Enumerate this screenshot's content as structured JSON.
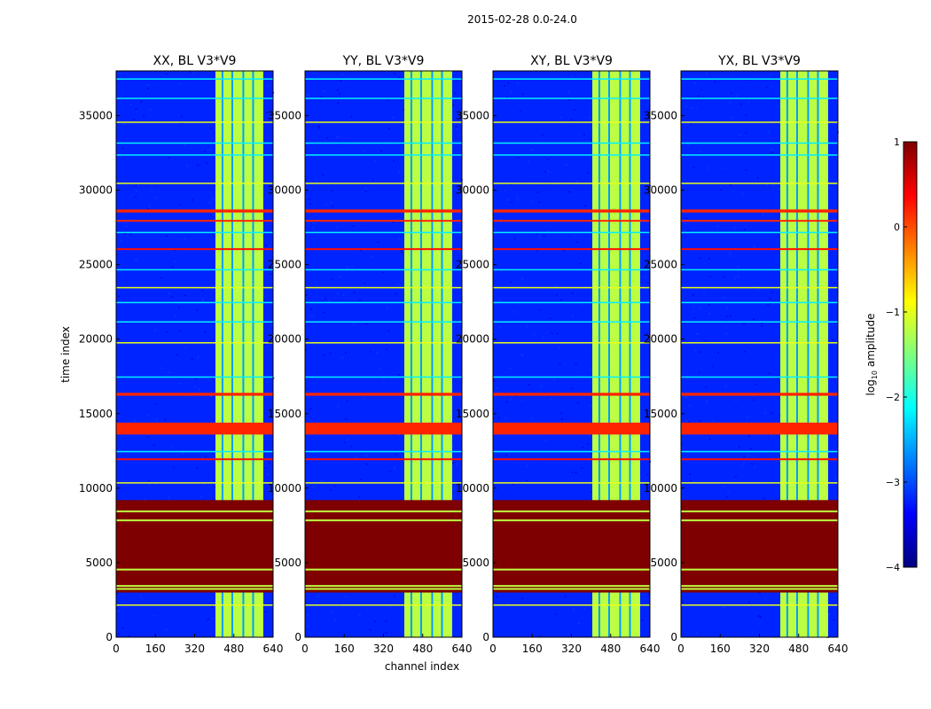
{
  "figure": {
    "suptitle": "2015-02-28 0.0-24.0"
  },
  "colorbar": {
    "label": "log₁₀ amplitude",
    "label_main": "amplitude",
    "label_log": "log",
    "label_sub": "10",
    "ticks": [
      "1",
      "0",
      "−1",
      "−2",
      "−3",
      "−4"
    ],
    "tick_values": [
      1,
      0,
      -1,
      -2,
      -3,
      -4
    ],
    "min": -4,
    "max": 1,
    "colors": [
      "#00007f",
      "#0000ff",
      "#007fff",
      "#00ffff",
      "#7fff7f",
      "#ffff00",
      "#ff7f00",
      "#ff0000",
      "#7f0000"
    ]
  },
  "chart_data": {
    "type": "heatmap",
    "xlabel": "channel index",
    "ylabel": "time index",
    "xlim": [
      0,
      640
    ],
    "ylim": [
      0,
      38000
    ],
    "xticks": [
      0,
      160,
      320,
      480,
      640
    ],
    "xtick_labels": [
      "0",
      "160",
      "320",
      "480",
      "640"
    ],
    "yticks": [
      0,
      5000,
      10000,
      15000,
      20000,
      25000,
      30000,
      35000
    ],
    "ytick_labels": [
      "0",
      "5000",
      "10000",
      "15000",
      "20000",
      "25000",
      "30000",
      "35000"
    ],
    "panels": [
      {
        "title": "XX, BL V3*V9"
      },
      {
        "title": "YY, BL V3*V9"
      },
      {
        "title": "XY, BL V3*V9"
      },
      {
        "title": "YX, BL V3*V9"
      }
    ],
    "bright_channel_range": [
      405,
      600
    ],
    "saturated_time_range": [
      3000,
      9200
    ],
    "saturated_value": 1,
    "background_value": -3.2,
    "band_value": -1.2,
    "flag_rows": [
      {
        "t_start": 13600,
        "t_end": 14400,
        "value": 0.2
      },
      {
        "t_start": 28500,
        "t_end": 28700,
        "value": 0.2
      },
      {
        "t_start": 27900,
        "t_end": 28000,
        "value": 0.2
      },
      {
        "t_start": 16200,
        "t_end": 16400,
        "value": 0.2
      },
      {
        "t_start": 11900,
        "t_end": 12000,
        "value": 0.3
      },
      {
        "t_start": 26000,
        "t_end": 26100,
        "value": 0.3
      }
    ]
  }
}
